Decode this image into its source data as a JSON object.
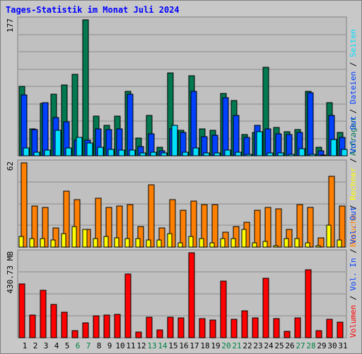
{
  "title": "Tages-Statistik im Monat Juli 2024",
  "colors": {
    "weekday": "#000000",
    "weekend": "#008040",
    "anfragen": "#007850",
    "dateien": "#0040ff",
    "seiten": "#00e0ff",
    "besuche": "#ff8000",
    "rechner": "#ffff00",
    "volumen": "#ff0000"
  },
  "chart_data": [
    {
      "type": "bar",
      "ymax_label": "177",
      "ymax": 177,
      "categories": [
        "1",
        "2",
        "3",
        "4",
        "5",
        "6",
        "7",
        "8",
        "9",
        "10",
        "11",
        "12",
        "13",
        "14",
        "15",
        "16",
        "17",
        "18",
        "19",
        "20",
        "21",
        "22",
        "23",
        "24",
        "25",
        "26",
        "27",
        "28",
        "29",
        "30",
        "31"
      ],
      "weekend_days": [
        "6",
        "7",
        "13",
        "14",
        "20",
        "21",
        "27",
        "28"
      ],
      "series": [
        {
          "name": "Anfragen",
          "values": [
            90,
            35,
            68,
            80,
            92,
            106,
            177,
            52,
            40,
            52,
            84,
            23,
            53,
            11,
            108,
            33,
            104,
            35,
            33,
            81,
            72,
            28,
            30,
            115,
            37,
            31,
            34,
            84,
            11,
            69,
            30
          ]
        },
        {
          "name": "Dateien",
          "values": [
            79,
            34,
            69,
            50,
            44,
            20,
            20,
            35,
            34,
            35,
            80,
            12,
            29,
            6,
            35,
            30,
            84,
            25,
            27,
            76,
            53,
            24,
            40,
            35,
            29,
            28,
            30,
            82,
            6,
            53,
            24
          ]
        },
        {
          "name": "Seiten",
          "values": [
            10,
            5,
            7,
            33,
            10,
            24,
            17,
            11,
            8,
            7,
            7,
            4,
            5,
            4,
            40,
            5,
            10,
            4,
            4,
            7,
            5,
            2,
            31,
            4,
            4,
            2,
            9,
            2,
            1,
            21,
            8
          ]
        }
      ],
      "legend_right": [
        "Anfragen",
        "Dateien",
        "Seiten"
      ]
    },
    {
      "type": "bar",
      "ymax_label": "62",
      "ymax": 62,
      "categories": [
        "1",
        "2",
        "3",
        "4",
        "5",
        "6",
        "7",
        "8",
        "9",
        "10",
        "11",
        "12",
        "13",
        "14",
        "15",
        "16",
        "17",
        "18",
        "19",
        "20",
        "21",
        "22",
        "23",
        "24",
        "25",
        "26",
        "27",
        "28",
        "29",
        "30",
        "31"
      ],
      "series": [
        {
          "name": "Besuche",
          "values": [
            62,
            30,
            29,
            14,
            41,
            35,
            13,
            36,
            29,
            30,
            31,
            15,
            46,
            14,
            35,
            27,
            34,
            31,
            31,
            11,
            15,
            18,
            27,
            29,
            28,
            13,
            31,
            29,
            7,
            52,
            30
          ]
        },
        {
          "name": "Rechner",
          "values": [
            8,
            6,
            6,
            5,
            10,
            15,
            13,
            6,
            8,
            7,
            6,
            6,
            5,
            5,
            10,
            3,
            8,
            6,
            3,
            6,
            6,
            13,
            3,
            4,
            1,
            6,
            6,
            3,
            1,
            16,
            5
          ]
        }
      ],
      "legend_right": [
        "Besuche",
        "Rechner",
        "Vol. Out"
      ]
    },
    {
      "type": "bar",
      "ymax_label": "430.73 MB",
      "ymax": 430.73,
      "categories": [
        "1",
        "2",
        "3",
        "4",
        "5",
        "6",
        "7",
        "8",
        "9",
        "10",
        "11",
        "12",
        "13",
        "14",
        "15",
        "16",
        "17",
        "18",
        "19",
        "20",
        "21",
        "22",
        "23",
        "24",
        "25",
        "26",
        "27",
        "28",
        "29",
        "30",
        "31"
      ],
      "series": [
        {
          "name": "Volumen",
          "values": [
            272,
            115,
            240,
            168,
            128,
            35,
            77,
            112,
            115,
            120,
            322,
            30,
            103,
            38,
            103,
            100,
            430,
            98,
            90,
            287,
            95,
            135,
            100,
            303,
            98,
            32,
            100,
            345,
            35,
            95,
            80
          ]
        }
      ],
      "legend_right": [
        "Volumen",
        "Vol. In",
        "Vol. Out"
      ]
    }
  ]
}
